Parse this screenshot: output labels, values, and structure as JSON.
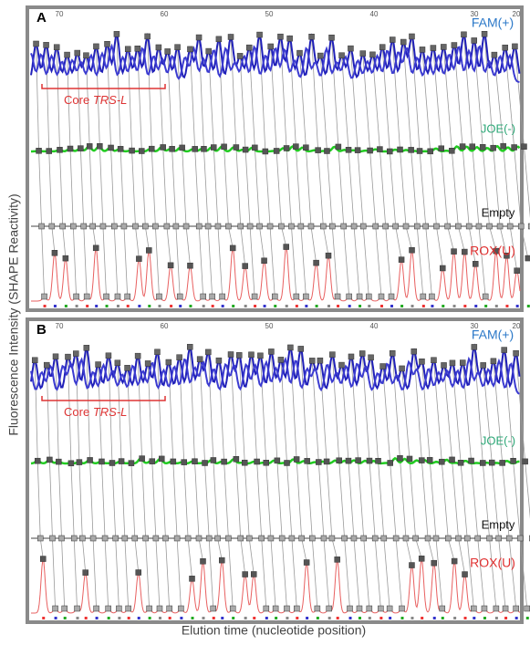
{
  "panels": [
    {
      "letter": "A",
      "ticks": [
        "70",
        "60",
        "50",
        "40",
        "30",
        "20"
      ],
      "channels": [
        "FAM(+)",
        "JOE(-)",
        "Empty",
        "ROX(U)"
      ],
      "region": {
        "text": "Core",
        "italic": "TRS-L"
      }
    },
    {
      "letter": "B",
      "ticks": [
        "70",
        "60",
        "50",
        "40",
        "30",
        "20"
      ],
      "channels": [
        "FAM(+)",
        "JOE(-)",
        "Empty",
        "ROX(U)"
      ],
      "region": {
        "text": "Core",
        "italic": "TRS-L"
      }
    }
  ],
  "y_axis_label": "Fluorescence Intensity (SHAPE Reactivity)",
  "x_axis_label": "Elution time (nucleotide position)"
}
